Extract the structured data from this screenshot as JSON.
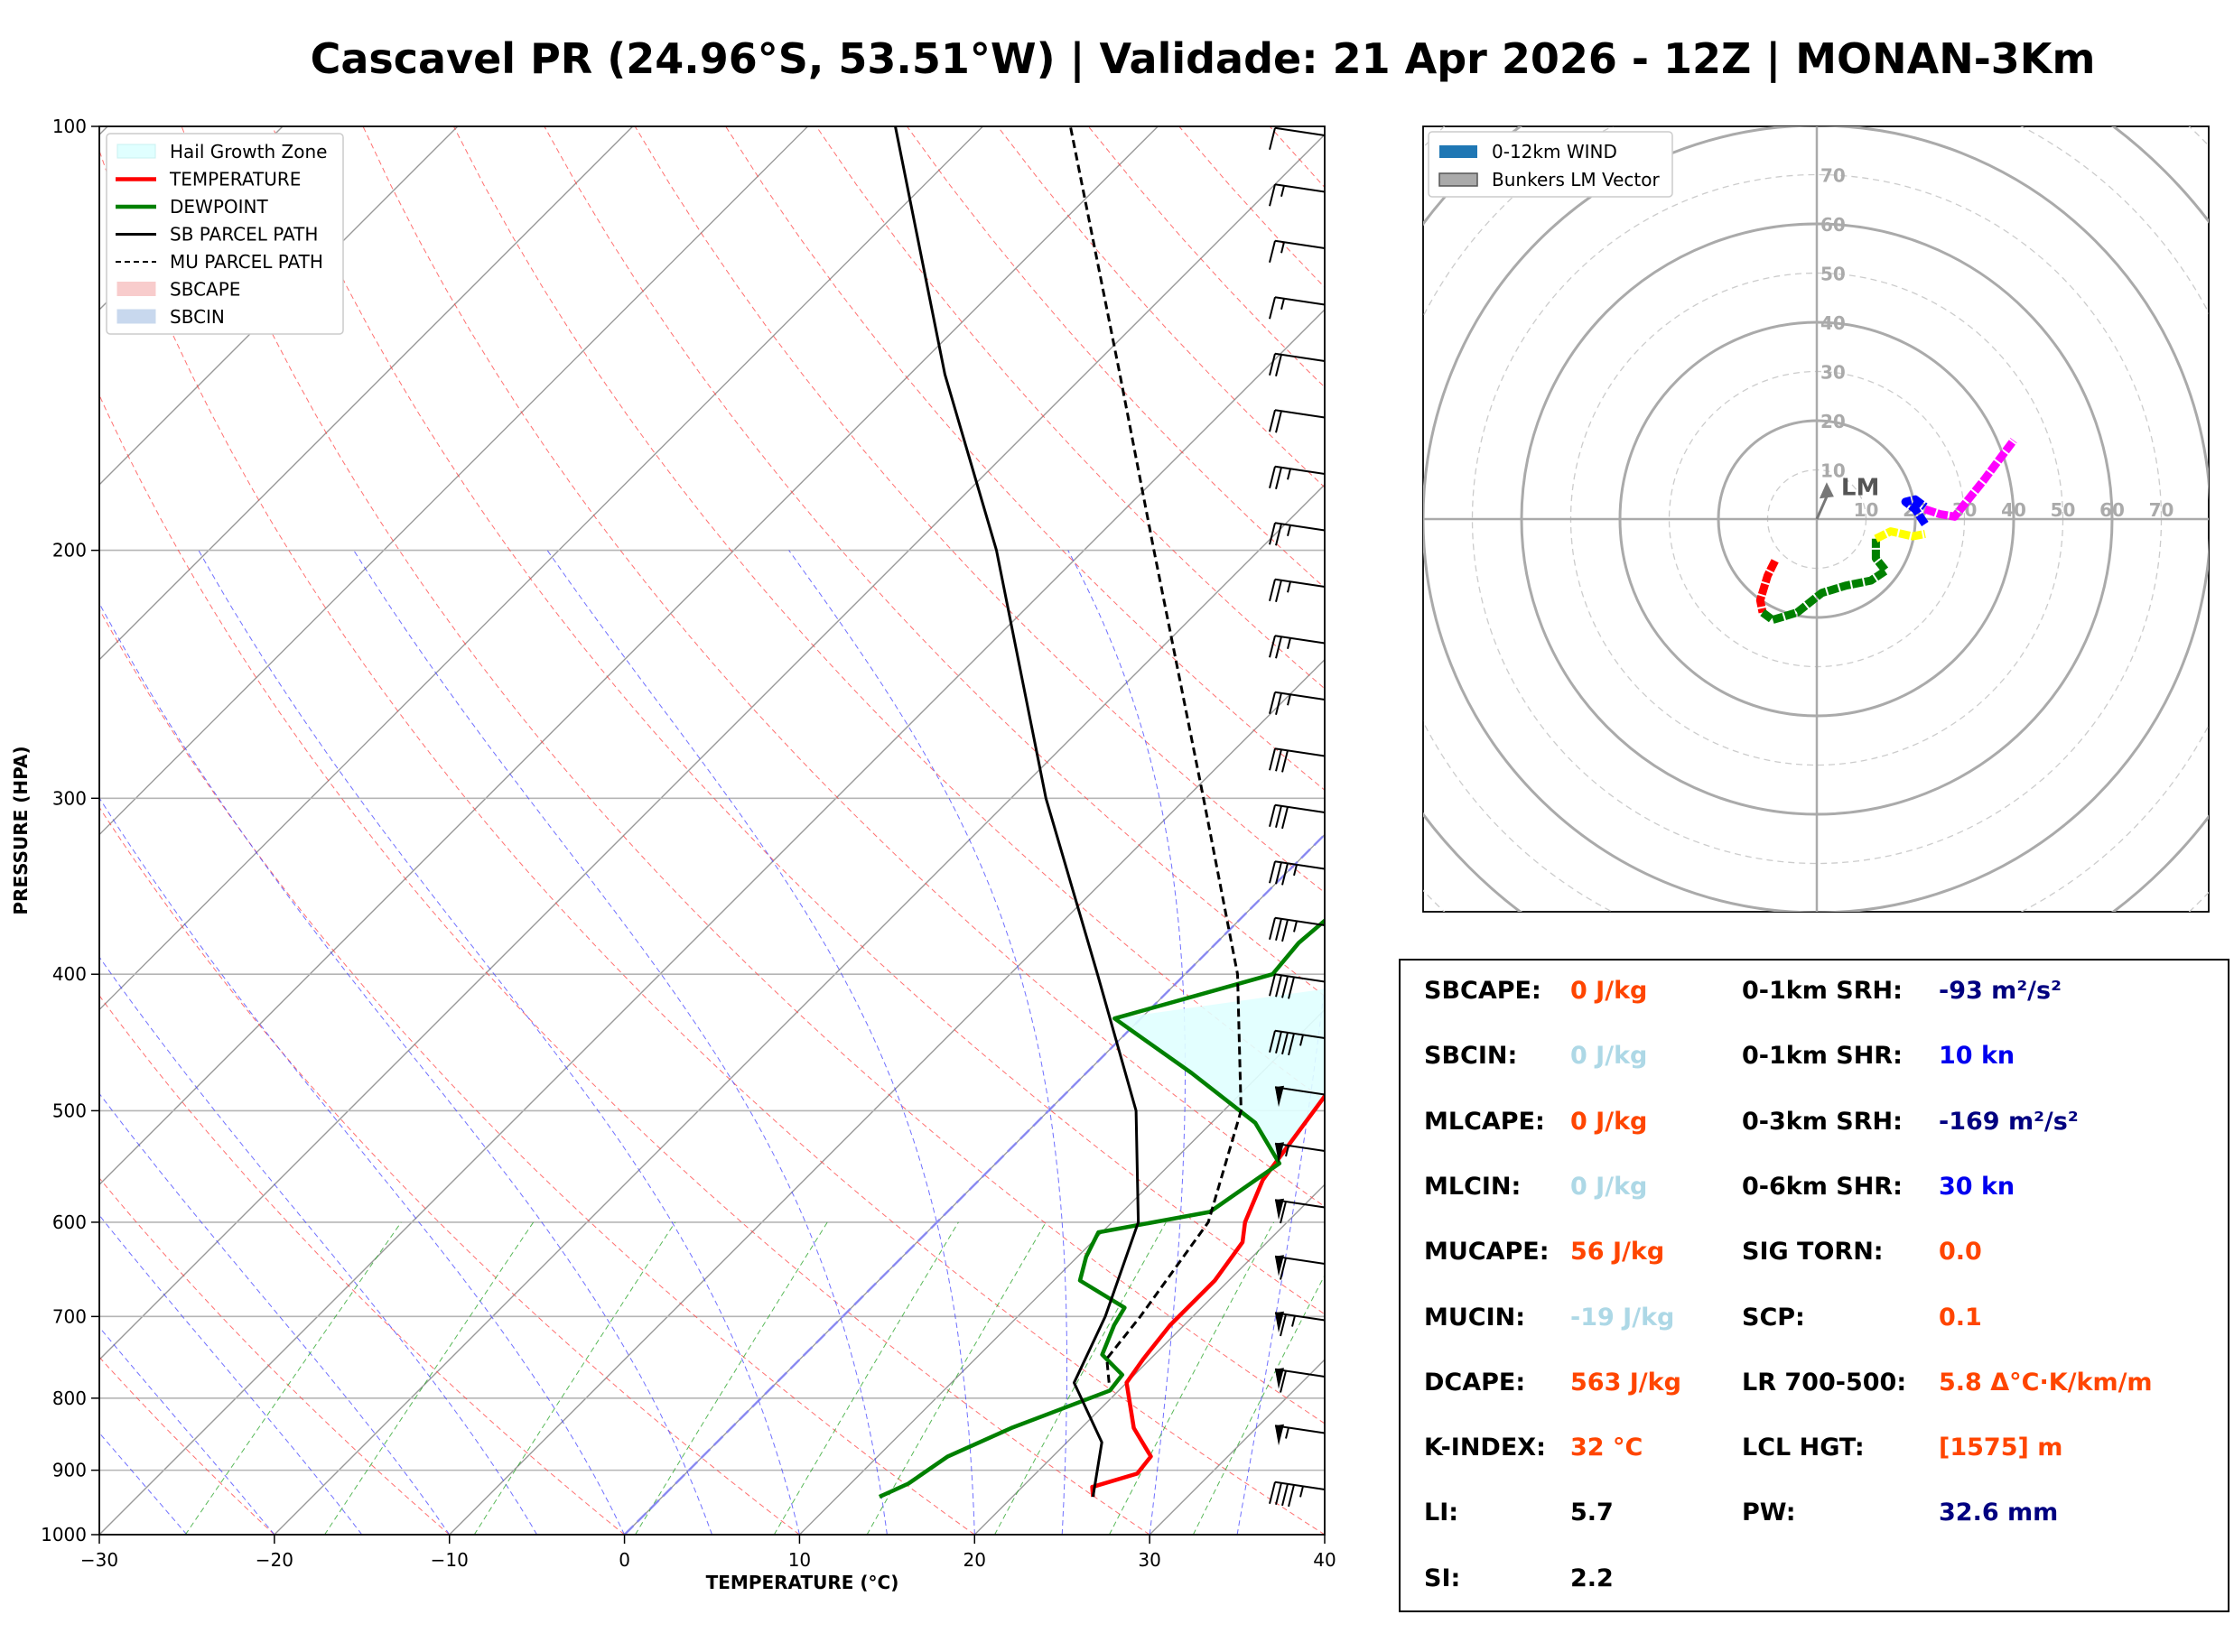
{
  "title": "Cascavel PR (24.96°S, 53.51°W) | Validade: 21 Apr 2026 - 12Z | MONAN-3Km",
  "skewt": {
    "xlabel": "TEMPERATURE (°C)",
    "ylabel": "PRESSURE (HPA)",
    "xticks": [
      "−30",
      "−20",
      "−10",
      "0",
      "10",
      "20",
      "30",
      "40"
    ],
    "yticks": [
      "100",
      "200",
      "300",
      "400",
      "500",
      "600",
      "700",
      "800",
      "900",
      "1000"
    ],
    "legend": [
      "Hail Growth Zone",
      "TEMPERATURE",
      "DEWPOINT",
      "SB PARCEL PATH",
      "MU PARCEL PATH",
      "SBCAPE",
      "SBCIN"
    ]
  },
  "hodograph": {
    "legend": [
      "0-12km WIND",
      "Bunkers LM Vector"
    ],
    "ring_labels": [
      "10",
      "20",
      "30",
      "40",
      "50",
      "60",
      "70"
    ],
    "lm_label": "LM"
  },
  "stats": {
    "left": [
      {
        "label": "SBCAPE:",
        "value": "0 J/kg",
        "color": "#ff4500"
      },
      {
        "label": "SBCIN:",
        "value": "0 J/kg",
        "color": "#add8e6"
      },
      {
        "label": "MLCAPE:",
        "value": "0 J/kg",
        "color": "#ff4500"
      },
      {
        "label": "MLCIN:",
        "value": "0 J/kg",
        "color": "#add8e6"
      },
      {
        "label": "MUCAPE:",
        "value": "56 J/kg",
        "color": "#ff4500"
      },
      {
        "label": "MUCIN:",
        "value": "-19 J/kg",
        "color": "#add8e6"
      },
      {
        "label": "DCAPE:",
        "value": "563 J/kg",
        "color": "#ff4500"
      },
      {
        "label": "K-INDEX:",
        "value": "32 °C",
        "color": "#ff4500"
      },
      {
        "label": "LI:",
        "value": "5.7",
        "color": "#000000"
      },
      {
        "label": "SI:",
        "value": "2.2",
        "color": "#000000"
      }
    ],
    "right": [
      {
        "label": "0-1km SRH:",
        "value": "-93 m²/s²",
        "color": "#000080"
      },
      {
        "label": "0-1km SHR:",
        "value": "10 kn",
        "color": "#0000ee"
      },
      {
        "label": "0-3km SRH:",
        "value": "-169 m²/s²",
        "color": "#000080"
      },
      {
        "label": "0-6km SHR:",
        "value": "30 kn",
        "color": "#0000ee"
      },
      {
        "label": "SIG TORN:",
        "value": "0.0",
        "color": "#ff4500"
      },
      {
        "label": "SCP:",
        "value": "0.1",
        "color": "#ff4500"
      },
      {
        "label": "LR 700-500:",
        "value": "5.8 Δ°C·K/km/m",
        "color": "#ff4500"
      },
      {
        "label": "LCL HGT:",
        "value": "[1575] m",
        "color": "#ff4500"
      },
      {
        "label": "PW:",
        "value": "32.6 mm",
        "color": "#000080"
      }
    ]
  },
  "chart_data": [
    {
      "type": "line",
      "title": "",
      "xlabel": "TEMPERATURE (°C)",
      "ylabel": "PRESSURE (HPA)",
      "xlim": [
        -30,
        40
      ],
      "ylim": [
        1000,
        100
      ],
      "yscale": "log",
      "grid": true,
      "legend_position": "top-left",
      "series": [
        {
          "name": "TEMPERATURE",
          "color": "#ff0000",
          "points": [
            [
              940,
              24.6
            ],
            [
              925,
              24
            ],
            [
              905,
              25.8
            ],
            [
              880,
              25.6
            ],
            [
              840,
              23
            ],
            [
              780,
              20
            ],
            [
              750,
              19.6
            ],
            [
              710,
              19.2
            ],
            [
              660,
              19.2
            ],
            [
              620,
              18.6
            ],
            [
              600,
              17.6
            ],
            [
              560,
              16.2
            ],
            [
              480,
              14.8
            ],
            [
              420,
              14
            ],
            [
              400,
              14
            ],
            [
              370,
              14.2
            ],
            [
              300,
              12
            ],
            [
              250,
              8.8
            ],
            [
              220,
              6.6
            ],
            [
              200,
              5.7
            ],
            [
              180,
              5.3
            ],
            [
              160,
              5.6
            ],
            [
              140,
              6.8
            ],
            [
              120,
              8.6
            ],
            [
              100,
              10.3
            ]
          ]
        },
        {
          "name": "DEWPOINT",
          "color": "#008000",
          "points": [
            [
              940,
              12.4
            ],
            [
              920,
              13.3
            ],
            [
              880,
              14
            ],
            [
              840,
              16
            ],
            [
              790,
              19.5
            ],
            [
              770,
              19.3
            ],
            [
              745,
              17
            ],
            [
              710,
              16
            ],
            [
              690,
              15.6
            ],
            [
              660,
              11.5
            ],
            [
              635,
              10.5
            ],
            [
              610,
              9.8
            ],
            [
              590,
              15
            ],
            [
              545,
              16.2
            ],
            [
              510,
              12.5
            ],
            [
              470,
              6
            ],
            [
              430,
              -1.5
            ],
            [
              400,
              5
            ],
            [
              380,
              4.7
            ],
            [
              350,
              5.2
            ],
            [
              320,
              5.5
            ],
            [
              285,
              2
            ],
            [
              265,
              2.5
            ],
            [
              240,
              3.8
            ],
            [
              215,
              0.2
            ],
            [
              195,
              -0.8
            ],
            [
              170,
              -3
            ],
            [
              155,
              -3.5
            ],
            [
              140,
              -5.5
            ],
            [
              120,
              -8
            ],
            [
              110,
              -7
            ],
            [
              100,
              -4.3
            ]
          ]
        },
        {
          "name": "SB PARCEL PATH",
          "color": "#000000",
          "points": [
            [
              940,
              24.6
            ],
            [
              860,
              22
            ],
            [
              780,
              17
            ],
            [
              700,
              15
            ],
            [
              600,
              11.5
            ],
            [
              500,
              5
            ],
            [
              400,
              -5
            ],
            [
              300,
              -18
            ],
            [
              200,
              -35
            ],
            [
              150,
              -48
            ],
            [
              100,
              -65
            ]
          ]
        },
        {
          "name": "MU PARCEL PATH",
          "color": "#000000",
          "dashed": true,
          "points": [
            [
              780,
              19
            ],
            [
              750,
              17.5
            ],
            [
              700,
              17
            ],
            [
              600,
              15.5
            ],
            [
              500,
              11
            ],
            [
              400,
              3
            ],
            [
              300,
              -9
            ],
            [
              200,
              -26
            ],
            [
              150,
              -38
            ],
            [
              100,
              -55
            ]
          ]
        }
      ],
      "wind_barbs_kt": [
        10,
        15,
        15,
        15,
        20,
        20,
        25,
        25,
        25,
        25,
        25,
        30,
        30,
        35,
        35,
        40,
        45,
        50,
        55,
        60,
        60,
        65,
        60,
        55,
        45
      ]
    },
    {
      "type": "line",
      "title": "",
      "xlim": [
        -80,
        80
      ],
      "ylim": [
        -80,
        80
      ],
      "legend_position": "top-left",
      "series": [
        {
          "name": "0-1km",
          "color": "#ff0000",
          "points": [
            [
              -8.5,
              -8.5
            ],
            [
              -10,
              -11.5
            ],
            [
              -11.5,
              -16.5
            ],
            [
              -11,
              -19
            ]
          ]
        },
        {
          "name": "1-3km",
          "color": "#008000",
          "points": [
            [
              -11,
              -19
            ],
            [
              -9,
              -20.5
            ],
            [
              -4,
              -19
            ],
            [
              1,
              -15
            ],
            [
              6,
              -13.5
            ],
            [
              11,
              -12.5
            ],
            [
              14,
              -10.5
            ],
            [
              12,
              -8
            ],
            [
              12,
              -4
            ]
          ]
        },
        {
          "name": "3-6km",
          "color": "#ffff00",
          "points": [
            [
              12,
              -4
            ],
            [
              15,
              -2.5
            ],
            [
              19.5,
              -3.5
            ],
            [
              22,
              -3
            ]
          ]
        },
        {
          "name": "6-9km",
          "color": "#0000ff",
          "points": [
            [
              22,
              -1
            ],
            [
              20,
              2
            ],
            [
              18,
              3.5
            ],
            [
              20,
              4
            ],
            [
              22,
              2.5
            ]
          ]
        },
        {
          "name": "9-12km",
          "color": "#ff00ff",
          "points": [
            [
              22,
              2
            ],
            [
              25,
              1
            ],
            [
              28,
              0.5
            ],
            [
              30,
              3
            ],
            [
              34,
              8
            ],
            [
              40,
              16
            ]
          ]
        }
      ],
      "bunkers_lm": [
        2,
        6
      ]
    }
  ]
}
